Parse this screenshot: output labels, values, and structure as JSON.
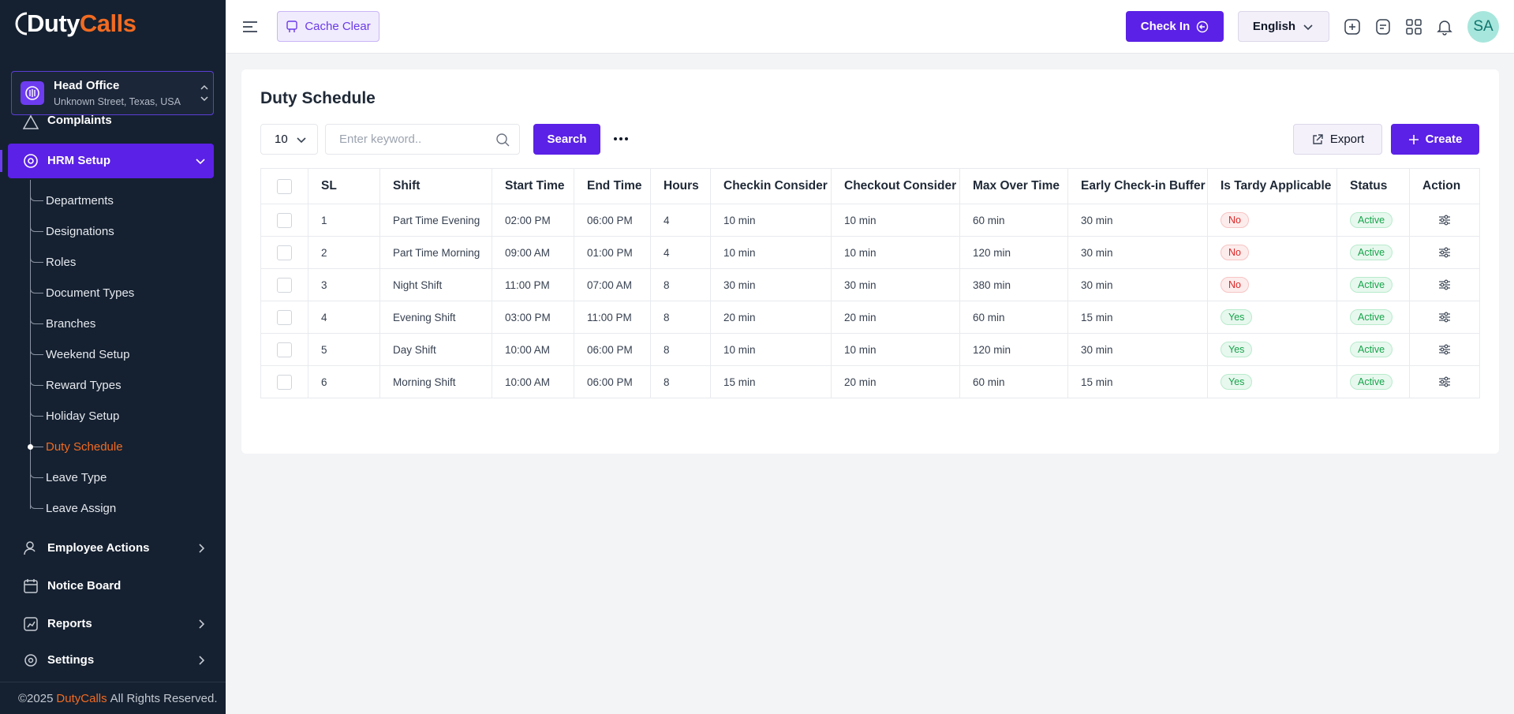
{
  "logo": {
    "first": "Duty",
    "second": "Calls"
  },
  "branch": {
    "name": "Head Office",
    "address": "Unknown Street, Texas, USA"
  },
  "sidebar": {
    "cut_item": "Complaints",
    "active_group": "HRM Setup",
    "sub_items": [
      {
        "label": "Departments"
      },
      {
        "label": "Designations"
      },
      {
        "label": "Roles"
      },
      {
        "label": "Document Types"
      },
      {
        "label": "Branches"
      },
      {
        "label": "Weekend Setup"
      },
      {
        "label": "Reward Types"
      },
      {
        "label": "Holiday Setup"
      },
      {
        "label": "Duty Schedule",
        "active": true
      },
      {
        "label": "Leave Type"
      },
      {
        "label": "Leave Assign"
      }
    ],
    "groups": [
      {
        "label": "Employee Actions",
        "expandable": true
      },
      {
        "label": "Notice Board",
        "expandable": false
      },
      {
        "label": "Reports",
        "expandable": true
      },
      {
        "label": "Settings",
        "expandable": true
      }
    ]
  },
  "footer": {
    "prefix": "©2025",
    "brand": "DutyCalls",
    "suffix": "All Rights Reserved."
  },
  "topbar": {
    "cache_clear": "Cache Clear",
    "check_in": "Check In",
    "language": "English",
    "avatar": "SA"
  },
  "page": {
    "title": "Duty Schedule",
    "page_size": "10",
    "search_placeholder": "Enter keyword..",
    "search": "Search",
    "export": "Export",
    "create": "Create"
  },
  "table": {
    "columns": [
      "SL",
      "Shift",
      "Start Time",
      "End Time",
      "Hours",
      "Checkin Consider",
      "Checkout Consider",
      "Max Over Time",
      "Early Check-in Buffer",
      "Is Tardy Applicable",
      "Status",
      "Action"
    ],
    "rows": [
      [
        "1",
        "Part Time Evening",
        "02:00 PM",
        "06:00 PM",
        "4",
        "10 min",
        "10 min",
        "60 min",
        "30 min",
        "No",
        "Active"
      ],
      [
        "2",
        "Part Time Morning",
        "09:00 AM",
        "01:00 PM",
        "4",
        "10 min",
        "10 min",
        "120 min",
        "30 min",
        "No",
        "Active"
      ],
      [
        "3",
        "Night Shift",
        "11:00 PM",
        "07:00 AM",
        "8",
        "30 min",
        "30 min",
        "380 min",
        "30 min",
        "No",
        "Active"
      ],
      [
        "4",
        "Evening Shift",
        "03:00 PM",
        "11:00 PM",
        "8",
        "20 min",
        "20 min",
        "60 min",
        "15 min",
        "Yes",
        "Active"
      ],
      [
        "5",
        "Day Shift",
        "10:00 AM",
        "06:00 PM",
        "8",
        "10 min",
        "10 min",
        "120 min",
        "30 min",
        "Yes",
        "Active"
      ],
      [
        "6",
        "Morning Shift",
        "10:00 AM",
        "06:00 PM",
        "8",
        "15 min",
        "20 min",
        "60 min",
        "15 min",
        "Yes",
        "Active"
      ]
    ],
    "badge_styles": {
      "No": {
        "color": "#dc2626",
        "background": "#fdecec",
        "border": "#f7c4c4"
      },
      "Yes": {
        "color": "#16a34a",
        "background": "#e7f8ee",
        "border": "#b9ebcd"
      },
      "Active": {
        "color": "#16a34a",
        "background": "#e7f8ee",
        "border": "#b9ebcd"
      }
    }
  }
}
